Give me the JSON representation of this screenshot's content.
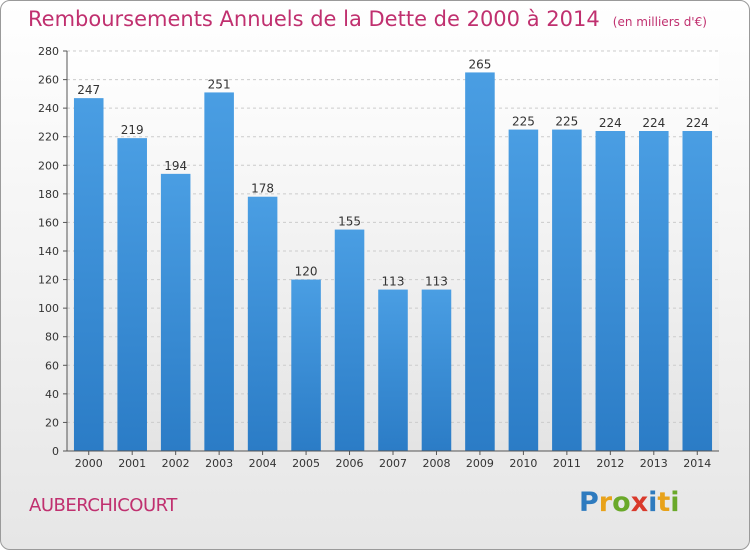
{
  "header": {
    "title": "Remboursements Annuels de la Dette de 2000 à 2014",
    "subtitle": "(en milliers d'€)"
  },
  "footer": {
    "city": "AUBERCHICOURT",
    "logo": {
      "letters": [
        "P",
        "r",
        "o",
        "x",
        "i",
        "t",
        "i"
      ],
      "colors": [
        "#2e7bbf",
        "#e8a21a",
        "#6aa92a",
        "#d9392b",
        "#2e7bbf",
        "#e8a21a",
        "#6aa92a"
      ]
    }
  },
  "chart_data": {
    "type": "bar",
    "categories": [
      "2000",
      "2001",
      "2002",
      "2003",
      "2004",
      "2005",
      "2006",
      "2007",
      "2008",
      "2009",
      "2010",
      "2011",
      "2012",
      "2013",
      "2014"
    ],
    "values": [
      247,
      219,
      194,
      251,
      178,
      120,
      155,
      113,
      113,
      265,
      225,
      225,
      224,
      224,
      224
    ],
    "data_labels": [
      "247",
      "219",
      "194",
      "251",
      "178",
      "120",
      "155",
      "113",
      "113",
      "265",
      "225",
      "225",
      "224",
      "224",
      "224"
    ],
    "ylim": [
      0,
      280
    ],
    "yticks": [
      0,
      20,
      40,
      60,
      80,
      100,
      120,
      140,
      160,
      180,
      200,
      220,
      240,
      260,
      280
    ],
    "grid": true,
    "bar_color": "#4a9ee3",
    "bar_color_dark": "#2b7cc6"
  }
}
